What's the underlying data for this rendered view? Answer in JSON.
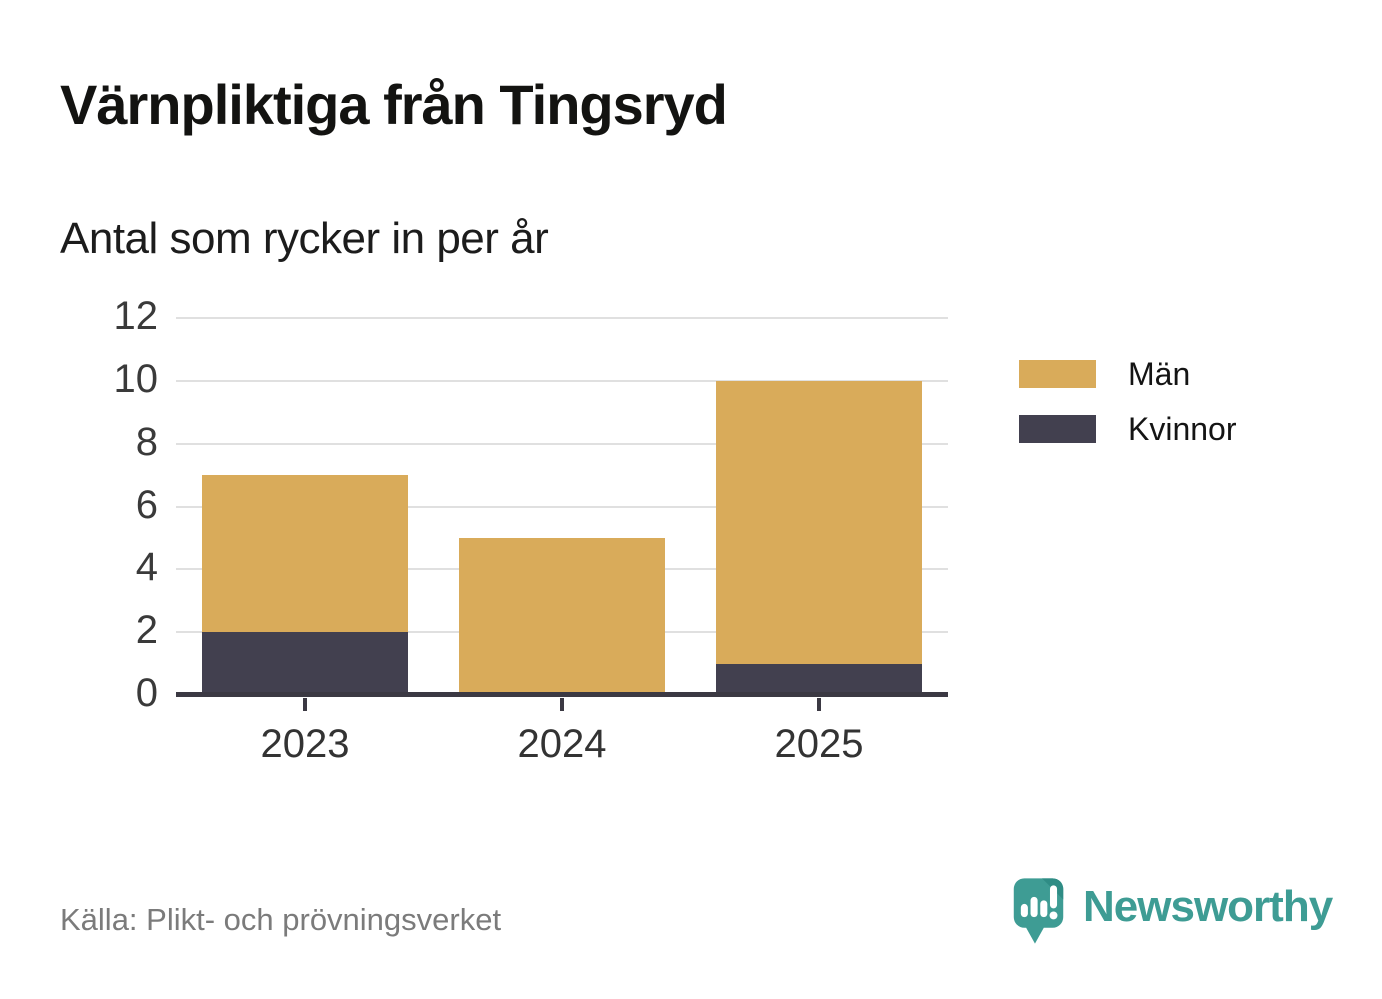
{
  "header": {
    "title": "Värnpliktiga från Tingsryd",
    "subtitle": "Antal som rycker in per år"
  },
  "footer": {
    "source": "Källa: Plikt- och prövningsverket",
    "brand": "Newsworthy"
  },
  "colors": {
    "men_gold": "#D9AB5A",
    "women_dark": "#42404F",
    "axis": "#3B3943",
    "grid": "#E0E0E0",
    "brand_teal": "#3E9C94",
    "brand_teal_dark": "#2F8C85"
  },
  "chart_data": {
    "type": "bar",
    "stacked": true,
    "title": "Värnpliktiga från Tingsryd",
    "subtitle": "Antal som rycker in per år",
    "categories": [
      "2023",
      "2024",
      "2025"
    ],
    "series": [
      {
        "name": "Kvinnor",
        "color": "#42404F",
        "values": [
          2,
          0,
          1
        ]
      },
      {
        "name": "Män",
        "color": "#D9AB5A",
        "values": [
          5,
          5,
          9
        ]
      }
    ],
    "stack_order_bottom_to_top": [
      "Kvinnor",
      "Män"
    ],
    "totals": [
      7,
      5,
      10
    ],
    "ylim": [
      0,
      12
    ],
    "yticks": [
      0,
      2,
      4,
      6,
      8,
      10,
      12
    ],
    "grid": "horizontal",
    "legend": {
      "position": "right",
      "entries": [
        {
          "label": "Män",
          "color": "#D9AB5A"
        },
        {
          "label": "Kvinnor",
          "color": "#42404F"
        }
      ]
    }
  }
}
